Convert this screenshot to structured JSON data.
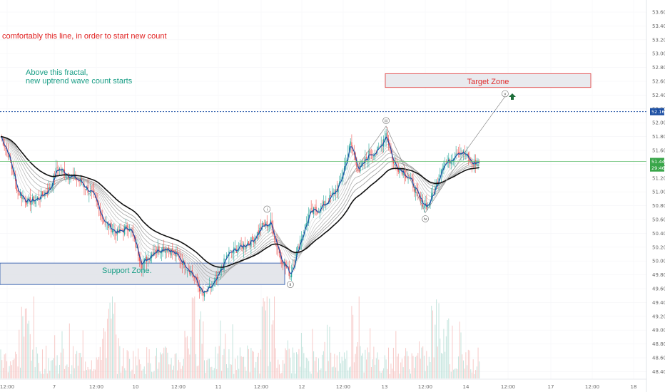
{
  "notes": {
    "red": "comfortably this line, in order to start new count",
    "teal_line1": "Above this fractal,",
    "teal_line2": "new uptrend wave count starts"
  },
  "zones": {
    "target": "Target Zone",
    "support": "Support Zone."
  },
  "chart_data": {
    "type": "candlestick",
    "y_ticks": [
      "53.60",
      "53.40",
      "53.20",
      "53.00",
      "52.80",
      "52.60",
      "52.40",
      "52.20",
      "52.00",
      "51.80",
      "51.60",
      "51.40",
      "51.20",
      "51.00",
      "50.80",
      "50.60",
      "50.40",
      "50.20",
      "50.00",
      "49.80",
      "49.60",
      "49.40",
      "49.20",
      "49.00",
      "48.80",
      "48.60",
      "48.40"
    ],
    "x_ticks": [
      "12:00",
      "7",
      "12:00",
      "10",
      "12:00",
      "11",
      "12:00",
      "12",
      "12:00",
      "13",
      "12:00",
      "14",
      "12:00",
      "17",
      "12:00",
      "18"
    ],
    "price_badges": [
      {
        "text": "52.16",
        "value": 52.16,
        "color": "#1c4fa3"
      },
      {
        "text": "51.44",
        "value": 51.44,
        "color": "#3aa64a"
      },
      {
        "text": "29:46",
        "value": 51.345,
        "color": "#3aa64a"
      }
    ],
    "levels": {
      "fractal_line": 52.16,
      "current_price": 51.44,
      "target_zone": [
        52.51,
        52.71
      ],
      "support_zone": [
        49.66,
        49.97
      ]
    },
    "wave_labels": [
      {
        "label": "i",
        "bar": 217,
        "price": 50.75
      },
      {
        "label": "ii",
        "bar": 236,
        "price": 49.66
      },
      {
        "label": "iii",
        "bar": 314,
        "price": 52.03
      },
      {
        "label": "iv",
        "bar": 346,
        "price": 50.61
      },
      {
        "label": "v",
        "bar": 411,
        "price": 52.42
      }
    ],
    "wave_path": [
      {
        "bar": 280,
        "price": 51.1
      },
      {
        "bar": 314,
        "price": 51.95
      },
      {
        "bar": 346,
        "price": 50.7
      },
      {
        "bar": 380,
        "price": 51.62
      },
      {
        "bar": 411,
        "price": 52.38
      }
    ],
    "series": [
      {
        "name": "",
        "type": "candles",
        "color_up": "#26a69a",
        "color_down": "#ef5350"
      },
      {
        "name": "",
        "type": "close_line",
        "color": "#1f4fa8"
      },
      {
        "name": "",
        "type": "ema_long",
        "color": "#111111"
      }
    ],
    "price_path": [
      {
        "bar": 0,
        "price": 51.8
      },
      {
        "bar": 6,
        "price": 51.55
      },
      {
        "bar": 14,
        "price": 51.0
      },
      {
        "bar": 22,
        "price": 50.85
      },
      {
        "bar": 30,
        "price": 50.9
      },
      {
        "bar": 40,
        "price": 51.05
      },
      {
        "bar": 46,
        "price": 51.35
      },
      {
        "bar": 55,
        "price": 51.25
      },
      {
        "bar": 65,
        "price": 51.15
      },
      {
        "bar": 75,
        "price": 50.95
      },
      {
        "bar": 85,
        "price": 50.55
      },
      {
        "bar": 95,
        "price": 50.4
      },
      {
        "bar": 105,
        "price": 50.5
      },
      {
        "bar": 115,
        "price": 49.95
      },
      {
        "bar": 125,
        "price": 50.15
      },
      {
        "bar": 135,
        "price": 50.2
      },
      {
        "bar": 145,
        "price": 50.05
      },
      {
        "bar": 155,
        "price": 49.85
      },
      {
        "bar": 165,
        "price": 49.5
      },
      {
        "bar": 175,
        "price": 49.7
      },
      {
        "bar": 185,
        "price": 50.1
      },
      {
        "bar": 195,
        "price": 50.2
      },
      {
        "bar": 205,
        "price": 50.3
      },
      {
        "bar": 213,
        "price": 50.5
      },
      {
        "bar": 220,
        "price": 50.55
      },
      {
        "bar": 228,
        "price": 50.05
      },
      {
        "bar": 236,
        "price": 49.8
      },
      {
        "bar": 244,
        "price": 50.3
      },
      {
        "bar": 252,
        "price": 50.7
      },
      {
        "bar": 260,
        "price": 50.75
      },
      {
        "bar": 268,
        "price": 50.9
      },
      {
        "bar": 276,
        "price": 51.1
      },
      {
        "bar": 285,
        "price": 51.7
      },
      {
        "bar": 292,
        "price": 51.3
      },
      {
        "bar": 300,
        "price": 51.55
      },
      {
        "bar": 308,
        "price": 51.6
      },
      {
        "bar": 314,
        "price": 51.85
      },
      {
        "bar": 320,
        "price": 51.4
      },
      {
        "bar": 328,
        "price": 51.3
      },
      {
        "bar": 336,
        "price": 51.1
      },
      {
        "bar": 342,
        "price": 50.85
      },
      {
        "bar": 348,
        "price": 50.8
      },
      {
        "bar": 354,
        "price": 51.05
      },
      {
        "bar": 360,
        "price": 51.4
      },
      {
        "bar": 366,
        "price": 51.45
      },
      {
        "bar": 372,
        "price": 51.6
      },
      {
        "bar": 378,
        "price": 51.55
      },
      {
        "bar": 384,
        "price": 51.4
      },
      {
        "bar": 390,
        "price": 51.44
      }
    ]
  }
}
